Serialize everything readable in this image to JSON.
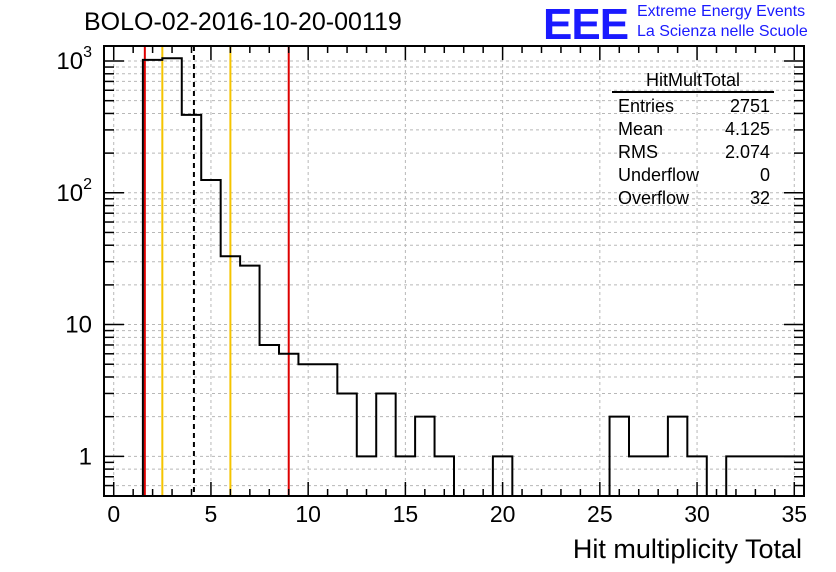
{
  "header": {
    "title": "BOLO-02-2016-10-20-00119"
  },
  "logo": {
    "mark": "EEE",
    "line1": "Extreme Energy Events",
    "line2": "La Scienza nelle Scuole",
    "color": "#1a1aff"
  },
  "stats_box": {
    "title": "HitMultTotal",
    "rows": [
      {
        "label": "Entries",
        "value": "2751"
      },
      {
        "label": "Mean",
        "value": "4.125"
      },
      {
        "label": "RMS",
        "value": "2.074"
      },
      {
        "label": "Underflow",
        "value": "0"
      },
      {
        "label": "Overflow",
        "value": "32"
      }
    ]
  },
  "chart_data": {
    "type": "histogram",
    "title": "BOLO-02-2016-10-20-00119",
    "xlabel": "Hit multiplicity Total",
    "ylabel": "",
    "xlim": [
      -0.5,
      35.5
    ],
    "ylim": [
      0.5,
      1300
    ],
    "yscale": "log",
    "grid": true,
    "bin_width": 1,
    "bins": [
      {
        "x": 2,
        "y": 1020
      },
      {
        "x": 3,
        "y": 1050
      },
      {
        "x": 4,
        "y": 390
      },
      {
        "x": 5,
        "y": 125
      },
      {
        "x": 6,
        "y": 33
      },
      {
        "x": 7,
        "y": 28
      },
      {
        "x": 8,
        "y": 7
      },
      {
        "x": 9,
        "y": 6
      },
      {
        "x": 10,
        "y": 5
      },
      {
        "x": 11,
        "y": 5
      },
      {
        "x": 12,
        "y": 3
      },
      {
        "x": 13,
        "y": 1
      },
      {
        "x": 14,
        "y": 3
      },
      {
        "x": 15,
        "y": 1
      },
      {
        "x": 16,
        "y": 2
      },
      {
        "x": 17,
        "y": 1
      },
      {
        "x": 20,
        "y": 1
      },
      {
        "x": 26,
        "y": 2
      },
      {
        "x": 27,
        "y": 1
      },
      {
        "x": 28,
        "y": 1
      },
      {
        "x": 29,
        "y": 2
      },
      {
        "x": 30,
        "y": 1
      },
      {
        "x": 32,
        "y": 1
      },
      {
        "x": 33,
        "y": 1
      },
      {
        "x": 34,
        "y": 1
      },
      {
        "x": 35,
        "y": 1
      }
    ],
    "x_ticks": [
      "0",
      "5",
      "10",
      "15",
      "20",
      "25",
      "30",
      "35"
    ],
    "x_tick_values": [
      0,
      5,
      10,
      15,
      20,
      25,
      30,
      35
    ],
    "y_ticks": [
      {
        "value": 1,
        "label": "1",
        "exp": ""
      },
      {
        "value": 10,
        "label": "10",
        "exp": ""
      },
      {
        "value": 100,
        "label": "10",
        "exp": "2"
      },
      {
        "value": 1000,
        "label": "10",
        "exp": "3"
      }
    ],
    "reference_lines": [
      {
        "x": 1.6,
        "color": "#dd0000",
        "style": "solid",
        "name": "red-limit-low"
      },
      {
        "x": 2.5,
        "color": "#f5c400",
        "style": "solid",
        "name": "yellow-limit-low"
      },
      {
        "x": 4.125,
        "color": "#000000",
        "style": "dashed",
        "name": "mean-line"
      },
      {
        "x": 6.0,
        "color": "#f5c400",
        "style": "solid",
        "name": "yellow-limit-high"
      },
      {
        "x": 9.0,
        "color": "#dd0000",
        "style": "solid",
        "name": "red-limit-high"
      }
    ]
  }
}
